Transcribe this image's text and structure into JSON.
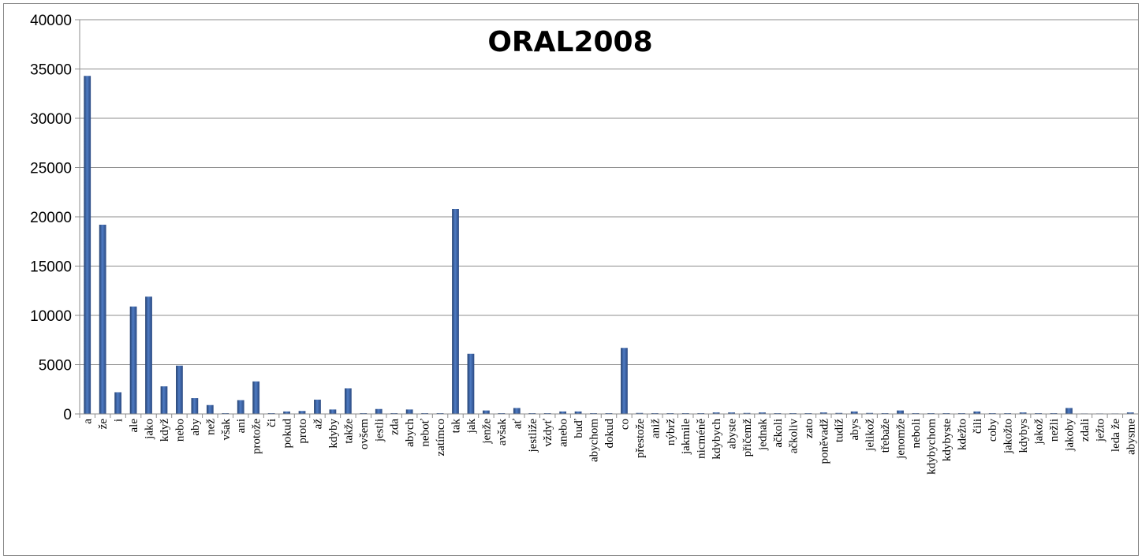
{
  "chart_data": {
    "type": "bar",
    "title": "ORAL2008",
    "xlabel": "",
    "ylabel": "",
    "ylim": [
      0,
      40000
    ],
    "yticks": [
      0,
      5000,
      10000,
      15000,
      20000,
      25000,
      30000,
      35000,
      40000
    ],
    "grid": true,
    "legend": "none",
    "bar_color": "#3a62a8",
    "categories": [
      "a",
      "že",
      "i",
      "ale",
      "jako",
      "když",
      "nebo",
      "aby",
      "než",
      "však",
      "ani",
      "protože",
      "či",
      "pokud",
      "proto",
      "až",
      "kdyby",
      "takže",
      "ovšem",
      "jestli",
      "zda",
      "abych",
      "neboť",
      "zatímco",
      "tak",
      "jak",
      "jenže",
      "avšak",
      "ať",
      "jestliže",
      "vždyť",
      "anebo",
      "buď",
      "abychom",
      "dokud",
      "co",
      "přestože",
      "aniž",
      "nýbrž",
      "jakmile",
      "nicméně",
      "kdybych",
      "abyste",
      "přičemž",
      "jednak",
      "ačkoli",
      "ačkoliv",
      "zato",
      "poněvadž",
      "tudíž",
      "abys",
      "jelikož",
      "třebaže",
      "jenomže",
      "neboli",
      "kdybychom",
      "kdybyste",
      "kdežto",
      "čili",
      "coby",
      "jakožto",
      "kdybys",
      "jakož",
      "nežli",
      "jakoby",
      "zdali",
      "ježto",
      "leda že",
      "abysme"
    ],
    "values": [
      34300,
      19200,
      2200,
      10900,
      11900,
      2800,
      4900,
      1600,
      900,
      80,
      1400,
      3300,
      80,
      250,
      300,
      1450,
      450,
      2600,
      80,
      500,
      80,
      450,
      80,
      80,
      20800,
      6100,
      350,
      80,
      600,
      80,
      80,
      250,
      250,
      80,
      80,
      6700,
      100,
      80,
      80,
      80,
      80,
      150,
      150,
      100,
      150,
      80,
      80,
      80,
      150,
      100,
      250,
      100,
      80,
      350,
      80,
      80,
      80,
      80,
      250,
      80,
      80,
      150,
      80,
      80,
      600,
      50,
      50,
      50,
      150
    ]
  }
}
